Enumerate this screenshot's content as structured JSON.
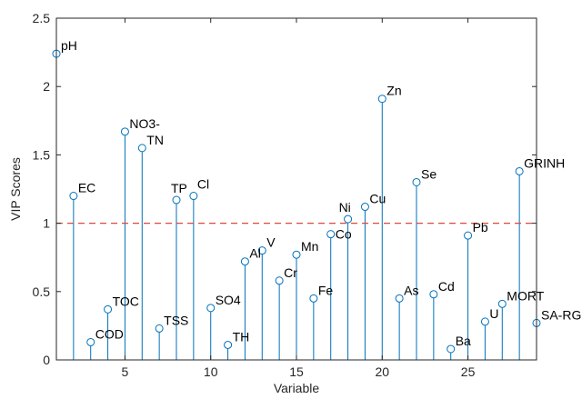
{
  "chart_data": {
    "type": "stem",
    "xlabel": "Variable",
    "ylabel": "VIP Scores",
    "xlim": [
      1,
      29
    ],
    "ylim": [
      0,
      2.5
    ],
    "xticks": [
      5,
      10,
      15,
      20,
      25
    ],
    "yticks": [
      0,
      0.5,
      1,
      1.5,
      2,
      2.5
    ],
    "ytick_labels": [
      "0",
      "0.5",
      "1",
      "1.5",
      "2",
      "2.5"
    ],
    "grid": false,
    "stem_color": "#0072BD",
    "threshold": {
      "value": 1,
      "style": "dashed",
      "color": "#E0473A"
    },
    "points": [
      {
        "x": 1,
        "y": 2.24,
        "label": "pH"
      },
      {
        "x": 2,
        "y": 1.2,
        "label": "EC"
      },
      {
        "x": 3,
        "y": 0.13,
        "label": "COD"
      },
      {
        "x": 4,
        "y": 0.37,
        "label": "TOC"
      },
      {
        "x": 5,
        "y": 1.67,
        "label": "NO3-"
      },
      {
        "x": 6,
        "y": 1.55,
        "label": "TN"
      },
      {
        "x": 7,
        "y": 0.23,
        "label": "TSS"
      },
      {
        "x": 8,
        "y": 1.17,
        "label": "TP"
      },
      {
        "x": 9,
        "y": 1.2,
        "label": "Cl"
      },
      {
        "x": 10,
        "y": 0.38,
        "label": "SO4"
      },
      {
        "x": 11,
        "y": 0.11,
        "label": "TH"
      },
      {
        "x": 12,
        "y": 0.72,
        "label": "Al"
      },
      {
        "x": 13,
        "y": 0.8,
        "label": "V"
      },
      {
        "x": 14,
        "y": 0.58,
        "label": "Cr"
      },
      {
        "x": 15,
        "y": 0.77,
        "label": "Mn"
      },
      {
        "x": 16,
        "y": 0.45,
        "label": "Fe"
      },
      {
        "x": 17,
        "y": 0.92,
        "label": "Co"
      },
      {
        "x": 18,
        "y": 1.03,
        "label": "Ni"
      },
      {
        "x": 19,
        "y": 1.12,
        "label": "Cu"
      },
      {
        "x": 20,
        "y": 1.91,
        "label": "Zn"
      },
      {
        "x": 21,
        "y": 0.45,
        "label": "As"
      },
      {
        "x": 22,
        "y": 1.3,
        "label": "Se"
      },
      {
        "x": 23,
        "y": 0.48,
        "label": "Cd"
      },
      {
        "x": 24,
        "y": 0.08,
        "label": "Ba"
      },
      {
        "x": 25,
        "y": 0.91,
        "label": "Pb"
      },
      {
        "x": 26,
        "y": 0.28,
        "label": "U"
      },
      {
        "x": 27,
        "y": 0.41,
        "label": "MORT"
      },
      {
        "x": 28,
        "y": 1.38,
        "label": "GRINH"
      },
      {
        "x": 29,
        "y": 0.27,
        "label": "SA-RG"
      }
    ]
  }
}
